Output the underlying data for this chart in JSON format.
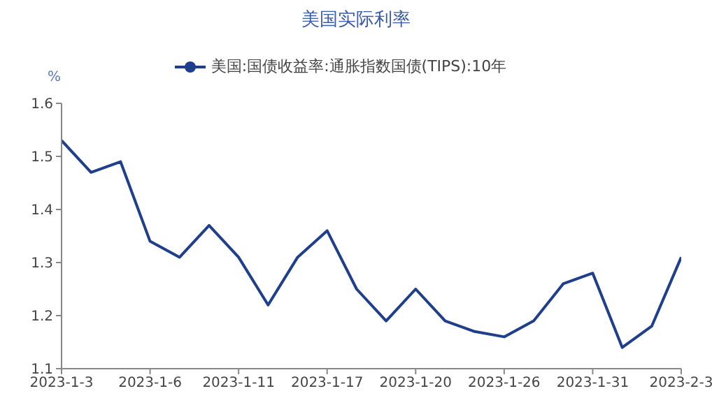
{
  "chart_data": {
    "type": "line",
    "title": "美国实际利率",
    "ylabel": "%",
    "categories": [
      "2023-1-3",
      null,
      null,
      "2023-1-6",
      null,
      null,
      "2023-1-11",
      null,
      null,
      "2023-1-17",
      null,
      null,
      "2023-1-20",
      null,
      null,
      "2023-1-26",
      null,
      null,
      "2023-1-31",
      null,
      null,
      "2023-2-3"
    ],
    "series": [
      {
        "name": "美国:国债收益率:通胀指数国债(TIPS):10年",
        "color": "#1f3f8c",
        "values": [
          1.53,
          1.47,
          1.49,
          1.34,
          1.31,
          1.37,
          1.31,
          1.22,
          1.31,
          1.36,
          1.25,
          1.19,
          1.25,
          1.19,
          1.17,
          1.16,
          1.19,
          1.26,
          1.28,
          1.14,
          1.18,
          1.31
        ]
      }
    ],
    "ylim": [
      1.1,
      1.6
    ],
    "yticks": [
      1.1,
      1.2,
      1.3,
      1.4,
      1.5,
      1.6
    ],
    "grid": false,
    "legend": "top",
    "marker": "none",
    "line_style": "solid"
  }
}
